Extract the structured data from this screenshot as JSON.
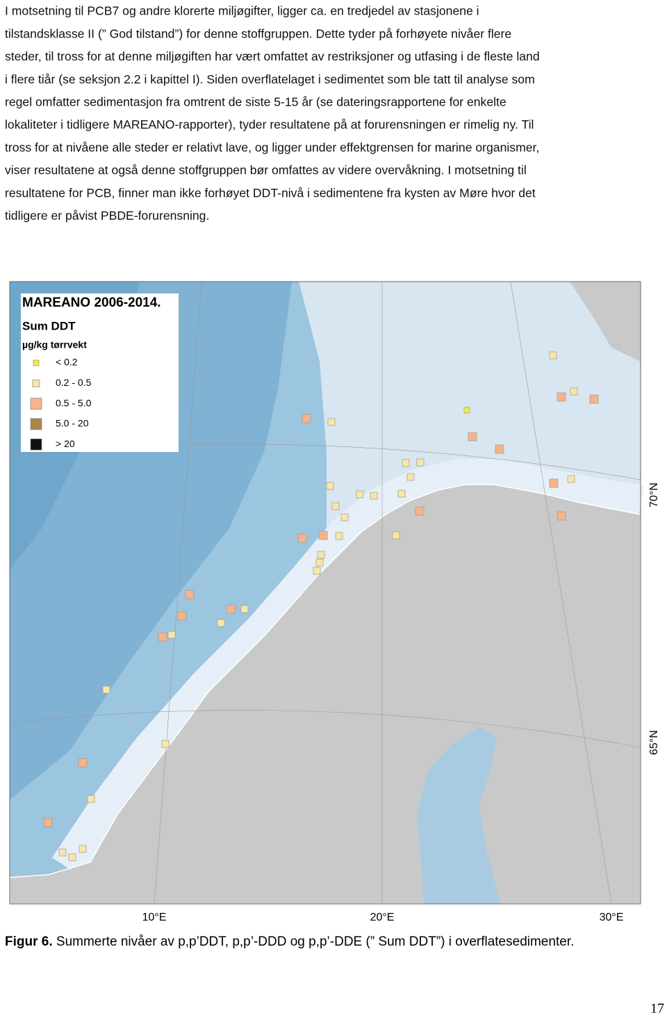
{
  "paragraph": {
    "lines": [
      "I motsetning til PCB7 og andre klorerte miljøgifter, ligger ca. en tredjedel av stasjonene i",
      "tilstandsklasse II (” God tilstand”) for denne stoffgruppen. Dette tyder på forhøyete nivåer flere",
      "steder, til tross for at denne miljøgiften har vært omfattet av restriksjoner og utfasing i de fleste land",
      "i flere tiår (se seksjon 2.2 i kapittel I). Siden overflatelaget i sedimentet som ble tatt til analyse som",
      "regel omfatter sedimentasjon fra omtrent de siste 5-15 år (se dateringsrapportene for enkelte",
      "lokaliteter i tidligere MAREANO-rapporter), tyder resultatene på at forurensningen er rimelig ny. Til",
      "tross for at nivåene alle steder er relativt lave, og ligger under effektgrensen for marine organismer,",
      "viser resultatene at også denne stoffgruppen bør omfattes av videre overvåkning. I motsetning til",
      "resultatene for PCB, finner man ikke forhøyet DDT-nivå i sedimentene fra kysten av Møre hvor det",
      "tidligere er påvist PBDE-forurensning."
    ]
  },
  "figure": {
    "legend": {
      "title": "MAREANO 2006-2014.",
      "subtitle": "Sum DDT",
      "unit": "µg/kg tørrvekt",
      "classes": [
        "< 0.2",
        "0.2 - 0.5",
        "0.5 - 5.0",
        "5.0 - 20",
        "> 20"
      ]
    },
    "x_labels": [
      "10°E",
      "20°E",
      "30°E"
    ],
    "y_labels": [
      "70°N",
      "65°N"
    ]
  },
  "caption": {
    "label": "Figur 6.",
    "text": " Summerte nivåer av p,p’DDT, p,p’-DDD og p,p’-DDE (” Sum DDT”) i overflatesedimenter."
  },
  "page_number": 17
}
